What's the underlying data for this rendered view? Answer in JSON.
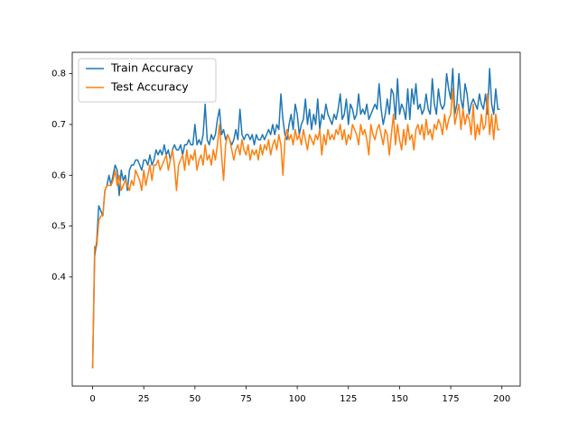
{
  "chart_data": {
    "type": "line",
    "x": [
      0,
      1,
      2,
      3,
      4,
      5,
      6,
      7,
      8,
      9,
      10,
      11,
      12,
      13,
      14,
      15,
      16,
      17,
      18,
      19,
      20,
      21,
      22,
      23,
      24,
      25,
      26,
      27,
      28,
      29,
      30,
      31,
      32,
      33,
      34,
      35,
      36,
      37,
      38,
      39,
      40,
      41,
      42,
      43,
      44,
      45,
      46,
      47,
      48,
      49,
      50,
      51,
      52,
      53,
      54,
      55,
      56,
      57,
      58,
      59,
      60,
      61,
      62,
      63,
      64,
      65,
      66,
      67,
      68,
      69,
      70,
      71,
      72,
      73,
      74,
      75,
      76,
      77,
      78,
      79,
      80,
      81,
      82,
      83,
      84,
      85,
      86,
      87,
      88,
      89,
      90,
      91,
      92,
      93,
      94,
      95,
      96,
      97,
      98,
      99,
      100,
      101,
      102,
      103,
      104,
      105,
      106,
      107,
      108,
      109,
      110,
      111,
      112,
      113,
      114,
      115,
      116,
      117,
      118,
      119,
      120,
      121,
      122,
      123,
      124,
      125,
      126,
      127,
      128,
      129,
      130,
      131,
      132,
      133,
      134,
      135,
      136,
      137,
      138,
      139,
      140,
      141,
      142,
      143,
      144,
      145,
      146,
      147,
      148,
      149,
      150,
      151,
      152,
      153,
      154,
      155,
      156,
      157,
      158,
      159,
      160,
      161,
      162,
      163,
      164,
      165,
      166,
      167,
      168,
      169,
      170,
      171,
      172,
      173,
      174,
      175,
      176,
      177,
      178,
      179,
      180,
      181,
      182,
      183,
      184,
      185,
      186,
      187,
      188,
      189,
      190,
      191,
      192,
      193,
      194,
      195,
      196,
      197,
      198,
      199
    ],
    "series": [
      {
        "name": "Train Accuracy",
        "color": "#1f77b4",
        "values": [
          0.22,
          0.44,
          0.47,
          0.54,
          0.53,
          0.52,
          0.57,
          0.58,
          0.6,
          0.58,
          0.6,
          0.62,
          0.61,
          0.56,
          0.61,
          0.59,
          0.6,
          0.57,
          0.61,
          0.62,
          0.62,
          0.63,
          0.63,
          0.62,
          0.61,
          0.63,
          0.63,
          0.62,
          0.64,
          0.62,
          0.63,
          0.65,
          0.64,
          0.65,
          0.64,
          0.66,
          0.64,
          0.65,
          0.63,
          0.65,
          0.66,
          0.65,
          0.65,
          0.66,
          0.64,
          0.66,
          0.66,
          0.67,
          0.66,
          0.66,
          0.7,
          0.66,
          0.67,
          0.66,
          0.68,
          0.74,
          0.67,
          0.66,
          0.68,
          0.67,
          0.68,
          0.71,
          0.73,
          0.68,
          0.69,
          0.67,
          0.68,
          0.67,
          0.66,
          0.67,
          0.69,
          0.67,
          0.73,
          0.68,
          0.67,
          0.68,
          0.68,
          0.67,
          0.68,
          0.66,
          0.68,
          0.67,
          0.67,
          0.68,
          0.67,
          0.68,
          0.69,
          0.68,
          0.7,
          0.68,
          0.7,
          0.69,
          0.76,
          0.71,
          0.68,
          0.67,
          0.7,
          0.72,
          0.69,
          0.74,
          0.72,
          0.68,
          0.7,
          0.71,
          0.75,
          0.7,
          0.73,
          0.69,
          0.72,
          0.7,
          0.75,
          0.69,
          0.72,
          0.71,
          0.74,
          0.72,
          0.71,
          0.7,
          0.72,
          0.71,
          0.73,
          0.76,
          0.71,
          0.72,
          0.75,
          0.7,
          0.74,
          0.73,
          0.71,
          0.72,
          0.76,
          0.72,
          0.73,
          0.72,
          0.74,
          0.71,
          0.72,
          0.73,
          0.74,
          0.73,
          0.78,
          0.73,
          0.7,
          0.72,
          0.75,
          0.72,
          0.77,
          0.76,
          0.71,
          0.79,
          0.72,
          0.74,
          0.73,
          0.71,
          0.77,
          0.71,
          0.77,
          0.74,
          0.78,
          0.73,
          0.74,
          0.72,
          0.73,
          0.76,
          0.73,
          0.72,
          0.79,
          0.74,
          0.72,
          0.77,
          0.74,
          0.73,
          0.74,
          0.8,
          0.77,
          0.75,
          0.81,
          0.72,
          0.74,
          0.8,
          0.75,
          0.73,
          0.78,
          0.76,
          0.72,
          0.74,
          0.75,
          0.74,
          0.73,
          0.76,
          0.74,
          0.73,
          0.76,
          0.72,
          0.81,
          0.74,
          0.72,
          0.77,
          0.73,
          0.73
        ]
      },
      {
        "name": "Test Accuracy",
        "color": "#ff7f0e",
        "values": [
          0.22,
          0.46,
          0.46,
          0.51,
          0.52,
          0.52,
          0.57,
          0.58,
          0.58,
          0.58,
          0.59,
          0.61,
          0.58,
          0.6,
          0.57,
          0.58,
          0.59,
          0.58,
          0.57,
          0.59,
          0.58,
          0.61,
          0.6,
          0.59,
          0.57,
          0.61,
          0.58,
          0.6,
          0.62,
          0.59,
          0.62,
          0.62,
          0.63,
          0.61,
          0.62,
          0.63,
          0.64,
          0.61,
          0.63,
          0.65,
          0.62,
          0.57,
          0.62,
          0.63,
          0.64,
          0.61,
          0.65,
          0.62,
          0.64,
          0.63,
          0.65,
          0.61,
          0.63,
          0.64,
          0.62,
          0.66,
          0.63,
          0.64,
          0.62,
          0.65,
          0.63,
          0.66,
          0.7,
          0.64,
          0.59,
          0.66,
          0.68,
          0.67,
          0.65,
          0.63,
          0.65,
          0.66,
          0.64,
          0.67,
          0.65,
          0.64,
          0.66,
          0.63,
          0.65,
          0.64,
          0.65,
          0.63,
          0.66,
          0.64,
          0.66,
          0.65,
          0.67,
          0.64,
          0.66,
          0.67,
          0.65,
          0.68,
          0.66,
          0.6,
          0.67,
          0.69,
          0.67,
          0.68,
          0.66,
          0.69,
          0.67,
          0.68,
          0.66,
          0.69,
          0.67,
          0.65,
          0.68,
          0.67,
          0.66,
          0.68,
          0.67,
          0.69,
          0.64,
          0.68,
          0.66,
          0.69,
          0.67,
          0.68,
          0.67,
          0.69,
          0.68,
          0.7,
          0.67,
          0.69,
          0.66,
          0.68,
          0.67,
          0.7,
          0.69,
          0.68,
          0.66,
          0.7,
          0.68,
          0.69,
          0.67,
          0.64,
          0.7,
          0.68,
          0.67,
          0.69,
          0.7,
          0.68,
          0.66,
          0.69,
          0.68,
          0.64,
          0.68,
          0.72,
          0.66,
          0.7,
          0.67,
          0.65,
          0.69,
          0.66,
          0.7,
          0.67,
          0.68,
          0.65,
          0.69,
          0.7,
          0.68,
          0.7,
          0.67,
          0.71,
          0.68,
          0.69,
          0.67,
          0.7,
          0.69,
          0.71,
          0.7,
          0.68,
          0.72,
          0.69,
          0.71,
          0.72,
          0.77,
          0.7,
          0.72,
          0.74,
          0.69,
          0.73,
          0.7,
          0.72,
          0.71,
          0.68,
          0.74,
          0.67,
          0.7,
          0.68,
          0.72,
          0.69,
          0.7,
          0.76,
          0.68,
          0.72,
          0.67,
          0.72,
          0.69,
          0.69
        ]
      }
    ],
    "xlim": [
      -9.95,
      208.95
    ],
    "xticks": [
      0,
      25,
      50,
      75,
      100,
      125,
      150,
      175,
      200
    ],
    "ylim": [
      0.185,
      0.842
    ],
    "yticks": [
      0.4,
      0.5,
      0.6,
      0.7,
      0.8
    ],
    "legend": "upper left",
    "grid": false
  }
}
